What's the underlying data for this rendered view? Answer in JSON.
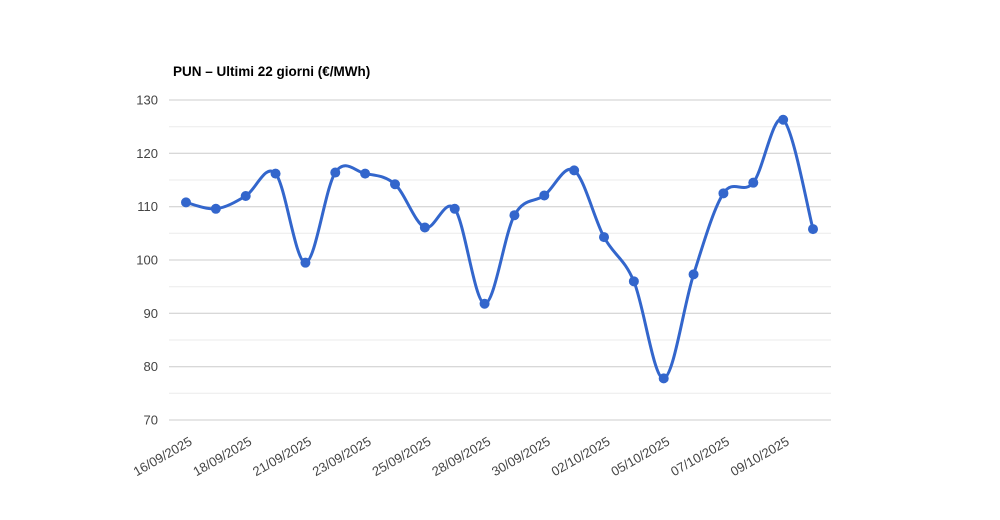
{
  "page": {
    "background": "#ffffff"
  },
  "chart_data": {
    "type": "line",
    "title": "PUN – Ultimi 22 giorni (€/MWh)",
    "series": [
      {
        "name": "PUN",
        "color": "#3366cc",
        "values": [
          110.8,
          109.6,
          112.0,
          116.2,
          99.5,
          116.4,
          116.2,
          114.2,
          106.1,
          109.6,
          91.8,
          108.4,
          112.1,
          116.8,
          104.3,
          96.0,
          77.8,
          97.3,
          112.5,
          114.5,
          126.3,
          105.8
        ]
      }
    ],
    "point_count": 22,
    "x_tick_labels": [
      "16/09/2025",
      "18/09/2025",
      "21/09/2025",
      "23/09/2025",
      "25/09/2025",
      "28/09/2025",
      "30/09/2025",
      "02/10/2025",
      "05/10/2025",
      "07/10/2025",
      "09/10/2025"
    ],
    "x_tick_point_indices": [
      0,
      2,
      4,
      6,
      8,
      10,
      12,
      14,
      16,
      18,
      20
    ],
    "y_ticks": [
      70,
      80,
      90,
      100,
      110,
      120,
      130
    ],
    "y_minor_ticks": [
      75,
      85,
      95,
      105,
      115,
      125
    ],
    "ylim": [
      70,
      130
    ],
    "xlabel": "",
    "ylabel": "",
    "legend": "none",
    "grid": true,
    "curve": "smooth",
    "colors": {
      "axis_text": "#444444",
      "major_grid": "#cccccc",
      "minor_grid": "#ebebeb",
      "background": "#ffffff"
    }
  }
}
